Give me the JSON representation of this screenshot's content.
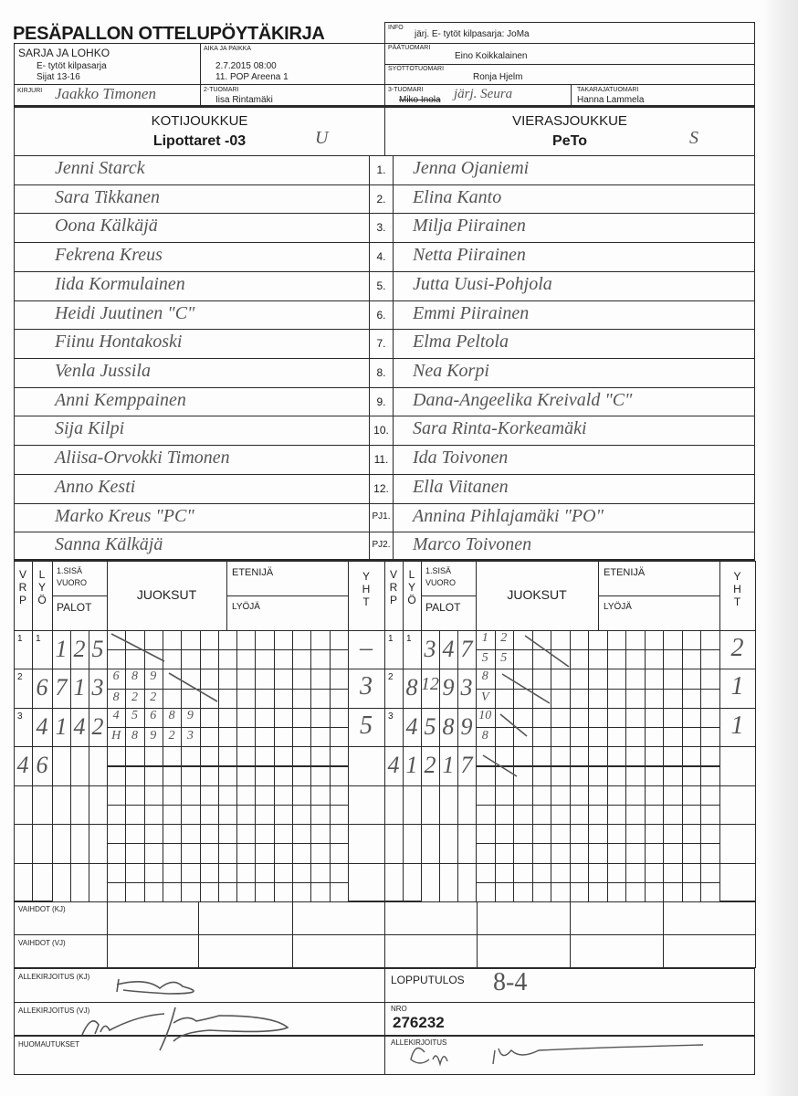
{
  "title": "PESÄPALLON OTTELUPÖYTÄKIRJA",
  "header": {
    "info_label": "INFO",
    "info_value": "järj. E- tytöt kilpasarja: JoMa",
    "series_label": "SARJA JA LOHKO",
    "series_value_1": "E- tytöt kilpasarja",
    "series_value_2": "Sijat 13-16",
    "time_place_label": "AIKA JA PAIKKA",
    "time_value": "2.7.2015 08:00",
    "place_value": "11. POP Areena 1",
    "head_umpire_label": "PÄÄTUOMARI",
    "head_umpire_value": "Eino Koikkalainen",
    "pitch_umpire_label": "SYÖTTÖTUOMARI",
    "pitch_umpire_value": "Ronja Hjelm",
    "scorer_label": "KIRJURI",
    "scorer_value": "Jaakko Timonen",
    "umpire2_label": "2-TUOMARI",
    "umpire2_value": "Iisa Rintamäki",
    "umpire3_label": "3-TUOMARI",
    "umpire3_value": "Miko Inola",
    "umpire3_handwritten": "järj. Seura",
    "back_umpire_label": "TAKARAJATUOMARI",
    "back_umpire_value": "Hanna Lammela"
  },
  "teams": {
    "home_label": "KOTIJOUKKUE",
    "home_name": "Lipottaret -03",
    "home_mark": "U",
    "away_label": "VIERASJOUKKUE",
    "away_name": "PeTo",
    "away_mark": "S"
  },
  "players": {
    "numbers": [
      "1.",
      "2.",
      "3.",
      "4.",
      "5.",
      "6.",
      "7.",
      "8.",
      "9.",
      "10.",
      "11.",
      "12.",
      "PJ1.",
      "PJ2."
    ],
    "home": [
      "Jenni Starck",
      "Sara Tikkanen",
      "Oona Kälkäjä",
      "Fekrena Kreus",
      "Iida Kormulainen",
      "Heidi Juutinen   \"C\"",
      "Fiinu Hontakoski",
      "Venla Jussila",
      "Anni Kemppainen",
      "Sija Kilpi",
      "Aliisa-Orvokki Timonen",
      "Anno Kesti",
      "Marko Kreus   \"PC\"",
      "Sanna Kälkäjä"
    ],
    "away": [
      "Jenna Ojaniemi",
      "Elina Kanto",
      "Milja Piirainen",
      "Netta Piirainen",
      "Jutta Uusi-Pohjola",
      "Emmi Piirainen",
      "Elma Peltola",
      "Nea Korpi",
      "Dana-Angeelika Kreivald   \"C\"",
      "Sara Rinta-Korkeamäki",
      "Ida Toivonen",
      "Ella Viitanen",
      "Annina Pihlajamäki   \"PO\"",
      "Marco Toivonen"
    ]
  },
  "grid_header": {
    "vrp": [
      "V",
      "R",
      "P"
    ],
    "lyo": [
      "L",
      "Y",
      "Ö"
    ],
    "first_inning": "1.SISÄ",
    "vuoro": "VUORO",
    "palot": "PALOT",
    "juoksut": "JUOKSUT",
    "etenija": "ETENIJÄ",
    "lyoja": "LYÖJÄ",
    "yht": [
      "Y",
      "H",
      "T"
    ]
  },
  "innings": {
    "home": [
      {
        "vrp": "1",
        "lyo": "1",
        "palot": [
          "1",
          "2",
          "5"
        ],
        "top": [],
        "bottom": [],
        "yht": "–"
      },
      {
        "vrp": "2",
        "lyo": "6",
        "palot": [
          "7",
          "1",
          "3"
        ],
        "top": [
          "6",
          "8",
          "9"
        ],
        "bottom": [
          "8",
          "2",
          "2"
        ],
        "yht": "3"
      },
      {
        "vrp": "3",
        "lyo": "4",
        "palot": [
          "1",
          "4",
          "2"
        ],
        "top": [
          "4",
          "5",
          "6",
          "8",
          "9"
        ],
        "bottom": [
          "H",
          "8",
          "9",
          "2",
          "3"
        ],
        "yht": "5"
      },
      {
        "vrp": "4",
        "lyo": "6",
        "palot": [],
        "top": [],
        "bottom": [],
        "yht": ""
      }
    ],
    "away": [
      {
        "vrp": "1",
        "lyo": "1",
        "palot": [
          "3",
          "4",
          "7"
        ],
        "top": [
          "1",
          "2"
        ],
        "bottom": [
          "5",
          "5"
        ],
        "yht": "2"
      },
      {
        "vrp": "2",
        "lyo": "8",
        "palot": [
          "12",
          "9",
          "3"
        ],
        "top": [
          "8"
        ],
        "bottom": [
          "V"
        ],
        "yht": "1"
      },
      {
        "vrp": "3",
        "lyo": "4",
        "palot": [
          "5",
          "8",
          "9"
        ],
        "top": [
          "10"
        ],
        "bottom": [
          "8"
        ],
        "yht": "1"
      },
      {
        "vrp": "4",
        "lyo": "1",
        "palot": [
          "2",
          "1",
          "7"
        ],
        "top": [],
        "bottom": [],
        "yht": ""
      }
    ]
  },
  "footer": {
    "subs_home_label": "VAIHDOT (KJ)",
    "subs_away_label": "VAIHDOT (VJ)",
    "sign_home_label": "ALLEKIRJOITUS (KJ)",
    "final_label": "LOPPUTULOS",
    "final_value": "8-4",
    "sign_away_label": "ALLEKIRJOITUS (VJ)",
    "nro_label": "NRO",
    "nro_value": "276232",
    "notes_label": "HUOMAUTUKSET",
    "sign_label": "ALLEKIRJOITUS"
  }
}
